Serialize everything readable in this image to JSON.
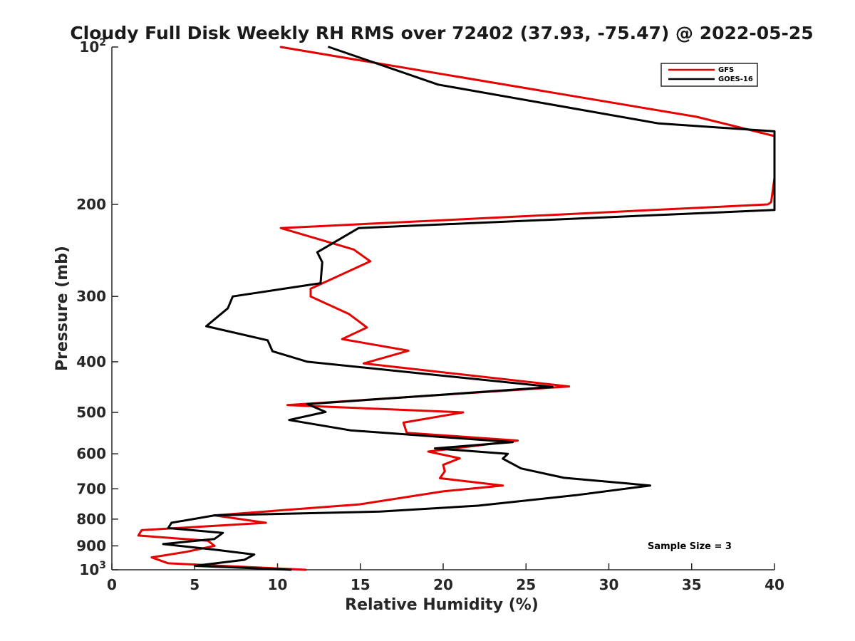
{
  "chart_data": {
    "type": "line",
    "title": "Cloudy Full Disk Weekly RH RMS over 72402 (37.93, -75.47) @ 2022-05-25",
    "xlabel": "Relative Humidity (%)",
    "ylabel": "Pressure (mb)",
    "xlim": [
      0,
      40
    ],
    "ylim": [
      100,
      1000
    ],
    "yscale": "log",
    "y_reversed": true,
    "x_ticks": [
      "0",
      "5",
      "10",
      "15",
      "20",
      "25",
      "30",
      "35",
      "40"
    ],
    "y_ticks": [
      {
        "value": 100,
        "label": "10",
        "sup": "2"
      },
      {
        "value": 200,
        "label": "200",
        "sup": ""
      },
      {
        "value": 300,
        "label": "300",
        "sup": ""
      },
      {
        "value": 400,
        "label": "400",
        "sup": ""
      },
      {
        "value": 500,
        "label": "500",
        "sup": ""
      },
      {
        "value": 600,
        "label": "600",
        "sup": ""
      },
      {
        "value": 700,
        "label": "700",
        "sup": ""
      },
      {
        "value": 800,
        "label": "800",
        "sup": ""
      },
      {
        "value": 900,
        "label": "900",
        "sup": ""
      },
      {
        "value": 1000,
        "label": "10",
        "sup": "3"
      }
    ],
    "legend_position": "top-right",
    "annotation": "Sample Size = 3",
    "series": [
      {
        "name": "GFS",
        "color": "#e60000",
        "points": [
          [
            10.2,
            100
          ],
          [
            35.3,
            136
          ],
          [
            40,
            148
          ],
          [
            40,
            178
          ],
          [
            39.8,
            198
          ],
          [
            39.6,
            200
          ],
          [
            10.2,
            222
          ],
          [
            14.6,
            244
          ],
          [
            15.6,
            257
          ],
          [
            12.0,
            290
          ],
          [
            12.0,
            300
          ],
          [
            14.3,
            324
          ],
          [
            15.4,
            344
          ],
          [
            13.9,
            362
          ],
          [
            17.9,
            381
          ],
          [
            15.2,
            403
          ],
          [
            27.6,
            446
          ],
          [
            10.6,
            484
          ],
          [
            21.2,
            500
          ],
          [
            17.6,
            523
          ],
          [
            17.8,
            547
          ],
          [
            24.5,
            566
          ],
          [
            19.1,
            594
          ],
          [
            21.0,
            612
          ],
          [
            20.0,
            630
          ],
          [
            20.1,
            648
          ],
          [
            19.8,
            668
          ],
          [
            23.6,
            690
          ],
          [
            20.0,
            708
          ],
          [
            14.9,
            750
          ],
          [
            6.2,
            787
          ],
          [
            9.3,
            813
          ],
          [
            1.8,
            840
          ],
          [
            1.6,
            860
          ],
          [
            5.8,
            880
          ],
          [
            6.2,
            900
          ],
          [
            4.5,
            924
          ],
          [
            2.4,
            947
          ],
          [
            3.4,
            972
          ],
          [
            11.7,
            1000
          ]
        ]
      },
      {
        "name": "GOES-16",
        "color": "#000000",
        "points": [
          [
            13.1,
            100
          ],
          [
            19.7,
            118
          ],
          [
            33.0,
            140
          ],
          [
            40,
            145
          ],
          [
            40,
            178
          ],
          [
            40,
            205
          ],
          [
            14.9,
            222
          ],
          [
            12.4,
            247
          ],
          [
            12.7,
            258
          ],
          [
            12.6,
            283
          ],
          [
            7.3,
            300
          ],
          [
            7.0,
            316
          ],
          [
            5.7,
            342
          ],
          [
            9.4,
            364
          ],
          [
            9.7,
            382
          ],
          [
            11.8,
            400
          ],
          [
            26.6,
            447
          ],
          [
            11.8,
            482
          ],
          [
            12.9,
            499
          ],
          [
            10.7,
            517
          ],
          [
            14.4,
            541
          ],
          [
            24.2,
            570
          ],
          [
            19.5,
            586
          ],
          [
            23.9,
            600
          ],
          [
            23.6,
            613
          ],
          [
            24.7,
            640
          ],
          [
            27.3,
            667
          ],
          [
            32.5,
            690
          ],
          [
            28.0,
            720
          ],
          [
            22.1,
            754
          ],
          [
            16.2,
            774
          ],
          [
            6.2,
            787
          ],
          [
            3.6,
            813
          ],
          [
            3.4,
            832
          ],
          [
            6.7,
            850
          ],
          [
            6.2,
            873
          ],
          [
            3.1,
            893
          ],
          [
            6.3,
            916
          ],
          [
            8.6,
            935
          ],
          [
            8.0,
            957
          ],
          [
            5.0,
            983
          ],
          [
            10.8,
            1000
          ]
        ]
      }
    ]
  }
}
